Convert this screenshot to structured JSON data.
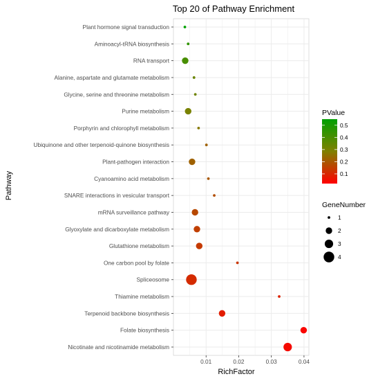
{
  "chart_data": {
    "type": "scatter",
    "title": "Top 20 of Pathway Enrichment",
    "xlabel": "RichFactor",
    "ylabel": "Pathway",
    "xlim": [
      0.0,
      0.0415
    ],
    "x_ticks": [
      0.01,
      0.02,
      0.03,
      0.04
    ],
    "x_tick_labels": [
      "0.01",
      "0.02",
      "0.03",
      "0.04"
    ],
    "grid": true,
    "categories": [
      "Plant hormone signal transduction",
      "Aminoacyl-tRNA biosynthesis",
      "RNA transport",
      "Alanine, aspartate and glutamate metabolism",
      "Glycine, serine and threonine metabolism",
      "Purine metabolism",
      "Porphyrin and chlorophyll metabolism",
      "Ubiquinone and other terpenoid-quinone biosynthesis",
      "Plant-pathogen interaction",
      "Cyanoamino acid metabolism",
      "SNARE interactions in vesicular transport",
      "mRNA surveillance pathway",
      "Glyoxylate and dicarboxylate metabolism",
      "Glutathione metabolism",
      "One carbon pool by folate",
      "Spliceosome",
      "Thiamine metabolism",
      "Terpenoid backbone biosynthesis",
      "Folate biosynthesis",
      "Nicotinate and nicotinamide metabolism"
    ],
    "points": [
      {
        "pathway": "Plant hormone signal transduction",
        "rich_factor": 0.0035,
        "gene_number": 1,
        "pvalue": 0.55
      },
      {
        "pathway": "Aminoacyl-tRNA biosynthesis",
        "rich_factor": 0.0045,
        "gene_number": 1,
        "pvalue": 0.45
      },
      {
        "pathway": "RNA transport",
        "rich_factor": 0.0036,
        "gene_number": 2,
        "pvalue": 0.4
      },
      {
        "pathway": "Alanine, aspartate and glutamate metabolism",
        "rich_factor": 0.0063,
        "gene_number": 1,
        "pvalue": 0.33
      },
      {
        "pathway": "Glycine, serine and threonine metabolism",
        "rich_factor": 0.0067,
        "gene_number": 1,
        "pvalue": 0.32
      },
      {
        "pathway": "Purine metabolism",
        "rich_factor": 0.0045,
        "gene_number": 2,
        "pvalue": 0.3
      },
      {
        "pathway": "Porphyrin and chlorophyll metabolism",
        "rich_factor": 0.0077,
        "gene_number": 1,
        "pvalue": 0.27
      },
      {
        "pathway": "Ubiquinone and other terpenoid-quinone biosynthesis",
        "rich_factor": 0.0101,
        "gene_number": 1,
        "pvalue": 0.22
      },
      {
        "pathway": "Plant-pathogen interaction",
        "rich_factor": 0.0057,
        "gene_number": 2,
        "pvalue": 0.22
      },
      {
        "pathway": "Cyanoamino acid metabolism",
        "rich_factor": 0.0107,
        "gene_number": 1,
        "pvalue": 0.2
      },
      {
        "pathway": "SNARE interactions in vesicular transport",
        "rich_factor": 0.0125,
        "gene_number": 1,
        "pvalue": 0.18
      },
      {
        "pathway": "mRNA surveillance pathway",
        "rich_factor": 0.0066,
        "gene_number": 2,
        "pvalue": 0.17
      },
      {
        "pathway": "Glyoxylate and dicarboxylate metabolism",
        "rich_factor": 0.0072,
        "gene_number": 2,
        "pvalue": 0.15
      },
      {
        "pathway": "Glutathione metabolism",
        "rich_factor": 0.0079,
        "gene_number": 2,
        "pvalue": 0.14
      },
      {
        "pathway": "One carbon pool by folate",
        "rich_factor": 0.0196,
        "gene_number": 1,
        "pvalue": 0.13
      },
      {
        "pathway": "Spliceosome",
        "rich_factor": 0.0055,
        "gene_number": 4,
        "pvalue": 0.11
      },
      {
        "pathway": "Thiamine metabolism",
        "rich_factor": 0.0324,
        "gene_number": 1,
        "pvalue": 0.09
      },
      {
        "pathway": "Terpenoid backbone biosynthesis",
        "rich_factor": 0.0149,
        "gene_number": 2,
        "pvalue": 0.08
      },
      {
        "pathway": "Folate biosynthesis",
        "rich_factor": 0.0399,
        "gene_number": 2,
        "pvalue": 0.03
      },
      {
        "pathway": "Nicotinate and nicotinamide metabolism",
        "rich_factor": 0.035,
        "gene_number": 3,
        "pvalue": 0.04
      }
    ],
    "color_legend": {
      "title": "PValue",
      "range": [
        0.02,
        0.55
      ],
      "low_color": "#ff0000",
      "mid_color": "#808000",
      "high_color": "#00a000",
      "ticks": [
        0.1,
        0.2,
        0.3,
        0.4,
        0.5
      ],
      "tick_labels": [
        "0.1",
        "0.2",
        "0.3",
        "0.4",
        "0.5"
      ]
    },
    "size_legend": {
      "title": "GeneNumber",
      "values": [
        1,
        2,
        3,
        4
      ],
      "labels": [
        "1",
        "2",
        "3",
        "4"
      ]
    },
    "legend_placement": "right",
    "panel_background": "#ffffff",
    "grid_color": "#ebebeb"
  }
}
